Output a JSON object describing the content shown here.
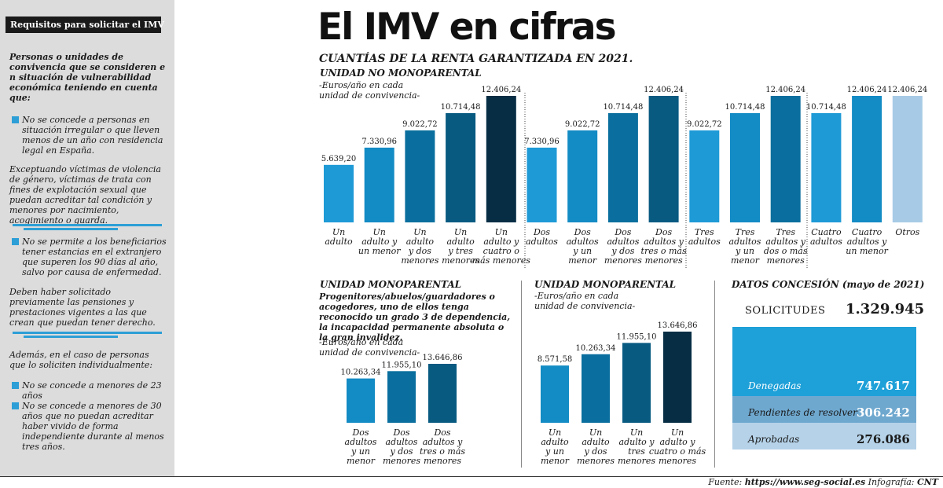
{
  "sidebar": {
    "title": "Requisitos para solicitar el IMV",
    "intro": "Personas o unidades de convivencia que se consideren e n situación de vulnerabilidad económica teniendo en cuenta que:",
    "bullet1": "No se concede a personas en situación irregular o que lleven menos de un año con residencia legal en España.",
    "paragraph1": "Exceptuando víctimas de violencia de género, víctimas de trata con fines de explotación sexual que puedan acreditar tal condición y menores por nacimiento, acogimiento o guarda.",
    "bullet2": "No se permite a los beneficiarios tener estancias en el extranjero que superen los 90 días al año, salvo por causa de enfermedad.",
    "paragraph2": "Deben haber solicitado previamente las pensiones y prestaciones vigentes a las que crean que puedan tener derecho.",
    "paragraph3": "Además, en el caso de personas que lo soliciten individualmente:",
    "bullet3": "No se concede a menores de 23 años",
    "bullet4": "No se concede a menores de 30 años que no puedan acreditar haber vivido de forma independiente durante al menos tres años."
  },
  "header": {
    "title": "El IMV en cifras",
    "subtitle": "CUANTÍAS DE LA RENTA GARANTIZADA EN 2021.",
    "section_top": "UNIDAD NO MONOPARENTAL",
    "unit_note_line1": "-Euros/año en cada",
    "unit_note_line2": "unidad de convivencia-"
  },
  "monoparental_left": {
    "title": "UNIDAD MONOPARENTAL",
    "description": "Progenitores/abuelos/guardadores o acogedores, uno de ellos tenga reconocido un grado 3 de dependencia, la incapacidad permanente absoluta o la gran invalidez.",
    "unit_note_line1": "-Euros/año en cada",
    "unit_note_line2": "unidad de convivencia-"
  },
  "monoparental_right": {
    "title": "UNIDAD MONOPARENTAL",
    "unit_note_line1": "-Euros/año en cada",
    "unit_note_line2": "unidad de convivencia-"
  },
  "stats": {
    "title": "DATOS CONCESIÓN (mayo de 2021)",
    "solicitudes_label": "SOLICITUDES",
    "solicitudes_value": "1.329.945",
    "denegadas_label": "Denegadas",
    "denegadas_value": "747.617",
    "pendientes_label": "Pendientes de resolver",
    "pendientes_value": "306.242",
    "aprobadas_label": "Aprobadas",
    "aprobadas_value": "276.086",
    "colors": {
      "denegadas": "#1ea0d8",
      "pendientes": "#6fa8cf",
      "aprobadas": "#b5d2e8"
    }
  },
  "footer": {
    "source_prefix": "Fuente:",
    "source_url": "https://www.seg-social.es",
    "credit_prefix": "Infografía:",
    "credit_name": "CNT"
  },
  "chart_data": [
    {
      "type": "bar",
      "categories": [
        [
          "Un",
          "adulto"
        ],
        [
          "Un",
          "adulto y",
          "un menor"
        ],
        [
          "Un",
          "adulto",
          "y dos",
          "menores"
        ],
        [
          "Un",
          "adulto",
          "y tres",
          "menores"
        ],
        [
          "Un",
          "adulto y",
          "cuatro o",
          "más menores"
        ],
        [
          "Dos",
          "adultos"
        ],
        [
          "Dos",
          "adultos",
          "y un",
          "menor"
        ],
        [
          "Dos",
          "adultos",
          "y dos",
          "menores"
        ],
        [
          "Dos",
          "adultos y",
          "tres o más",
          "menores"
        ],
        [
          "Tres",
          "adultos"
        ],
        [
          "Tres",
          "adultos",
          "y un",
          "menor"
        ],
        [
          "Tres",
          "adultos y",
          "dos o más",
          "menores"
        ],
        [
          "Cuatro",
          "adultos"
        ],
        [
          "Cuatro",
          "adultos y",
          "un menor"
        ],
        [
          "Otros"
        ]
      ],
      "values": [
        5639.2,
        7330.96,
        9022.72,
        10714.48,
        12406.24,
        7330.96,
        9022.72,
        10714.48,
        12406.24,
        9022.72,
        10714.48,
        12406.24,
        10714.48,
        12406.24,
        12406.24
      ],
      "value_labels": [
        "5.639,20",
        "7.330,96",
        "9.022,72",
        "10.714,48",
        "12.406,24",
        "7.330,96",
        "9.022,72",
        "10.714,48",
        "12.406,24",
        "9.022,72",
        "10.714,48",
        "12.406,24",
        "10.714,48",
        "12.406,24",
        "12.406,24"
      ],
      "colors": [
        "#1e9ad6",
        "#138bc4",
        "#0a6f9e",
        "#085a81",
        "#062d44",
        "#1e9ad6",
        "#138bc4",
        "#0a6f9e",
        "#085a81",
        "#1e9ad6",
        "#138bc4",
        "#0a6f9e",
        "#1e9ad6",
        "#138bc4",
        "#a7cbe6"
      ],
      "ylim": [
        0,
        12406.24
      ]
    },
    {
      "type": "bar",
      "categories": [
        [
          "Dos",
          "adultos",
          "y un",
          "menor"
        ],
        [
          "Dos",
          "adultos",
          "y dos",
          "menores"
        ],
        [
          "Dos",
          "adultos y",
          "tres o más",
          "menores"
        ]
      ],
      "values": [
        10263.34,
        11955.1,
        13646.86
      ],
      "value_labels": [
        "10.263,34",
        "11.955,10",
        "13.646,86"
      ],
      "colors": [
        "#138bc4",
        "#0a6f9e",
        "#085a81"
      ],
      "ylim": [
        0,
        13646.86
      ]
    },
    {
      "type": "bar",
      "categories": [
        [
          "Un",
          "adulto",
          "y un",
          "menor"
        ],
        [
          "Un",
          "adulto",
          "y dos",
          "menores"
        ],
        [
          "Un",
          "adulto y",
          "tres",
          "menores"
        ],
        [
          "Un",
          "adulto y",
          "cuatro o más",
          "menores"
        ]
      ],
      "values": [
        8571.58,
        10263.34,
        11955.1,
        13646.86
      ],
      "value_labels": [
        "8.571,58",
        "10.263,34",
        "11.955,10",
        "13.646,86"
      ],
      "colors": [
        "#138bc4",
        "#0a6f9e",
        "#085a81",
        "#062d44"
      ],
      "ylim": [
        0,
        13646.86
      ]
    }
  ]
}
